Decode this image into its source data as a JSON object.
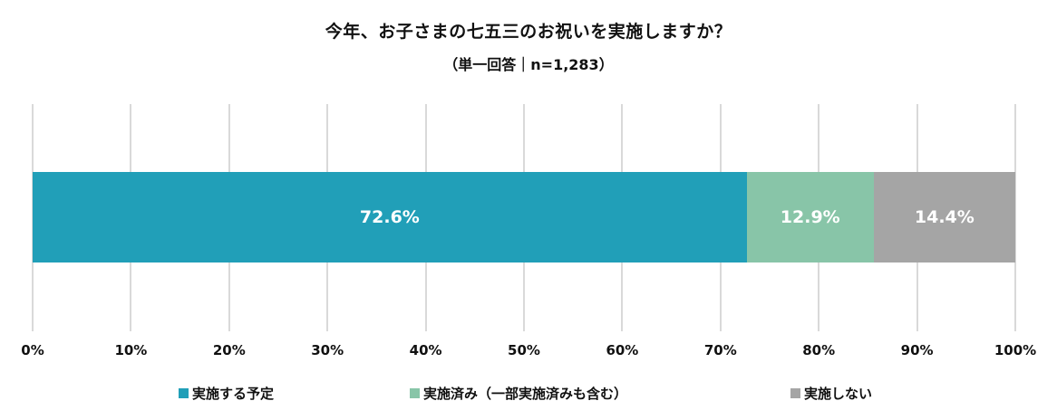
{
  "chart_data": {
    "type": "bar",
    "orientation": "horizontal-stacked-100",
    "title": "今年、お子さまの七五三のお祝いを実施しますか？",
    "subtitle": "（単一回答｜n=1,283）",
    "categories": [
      ""
    ],
    "series": [
      {
        "name": "実施する予定",
        "values": [
          72.6
        ],
        "label": "72.6%",
        "color": "#219fb8"
      },
      {
        "name": "実施済み（一部実施済みも含む）",
        "values": [
          12.9
        ],
        "label": "12.9%",
        "color": "#88c5a8"
      },
      {
        "name": "実施しない",
        "values": [
          14.4
        ],
        "label": "14.4%",
        "color": "#a5a5a5"
      }
    ],
    "xlabel": "",
    "ylabel": "",
    "xlim": [
      0,
      100
    ],
    "xticks": [
      "0%",
      "10%",
      "20%",
      "30%",
      "40%",
      "50%",
      "60%",
      "70%",
      "80%",
      "90%",
      "100%"
    ],
    "grid": true,
    "legend_position": "bottom"
  },
  "header": {
    "title": "今年、お子さまの七五三のお祝いを実施しますか？",
    "subtitle": "（単一回答｜n=1,283）"
  },
  "legend": [
    {
      "label": "実施する予定",
      "color": "#219fb8"
    },
    {
      "label": "実施済み（一部実施済みも含む）",
      "color": "#88c5a8"
    },
    {
      "label": "実施しない",
      "color": "#a5a5a5"
    }
  ]
}
